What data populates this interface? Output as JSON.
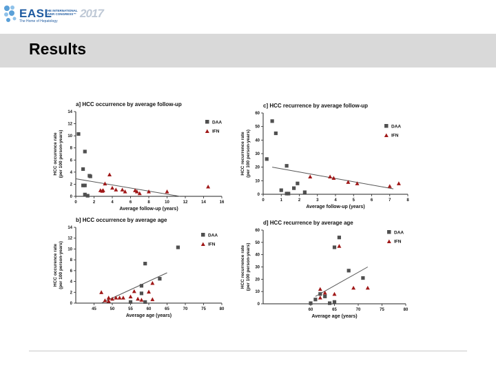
{
  "header": {
    "logo_text": "EASL",
    "logo_sub": "The Home of Hepatology",
    "logo_congress": "THE INTERNATIONAL LIVER CONGRESS™",
    "logo_year": "2017"
  },
  "slide": {
    "title": "Results"
  },
  "colors": {
    "daa": "#505050",
    "ifn": "#a01818",
    "trend": "#555555",
    "banner": "#d9d9d9"
  },
  "chart_data": [
    {
      "type": "scatter",
      "title": "a] HCC occurrence by average follow-up",
      "xlabel": "Average follow-up (years)",
      "ylabel": [
        "HCC occurence rate",
        "(per 100 person-years)"
      ],
      "xlim": [
        0,
        16
      ],
      "ylim": [
        0,
        14
      ],
      "xticks": [
        "0",
        "2",
        "4",
        "6",
        "8",
        "10",
        "12",
        "14",
        "16"
      ],
      "yticks": [
        "0",
        "2",
        "4",
        "6",
        "8",
        "10",
        "12",
        "14"
      ],
      "legend": [
        "DAA",
        "IFN"
      ],
      "trend": {
        "x": [
          0,
          11.4
        ],
        "y": [
          2.9,
          0
        ]
      },
      "series": [
        {
          "name": "DAA",
          "marker": "square",
          "points": [
            [
              0.3,
              10.3
            ],
            [
              1.0,
              7.4
            ],
            [
              0.8,
              4.5
            ],
            [
              0.8,
              1.8
            ],
            [
              1.0,
              1.8
            ],
            [
              1.5,
              3.4
            ],
            [
              1.6,
              3.3
            ],
            [
              1.0,
              0.3
            ],
            [
              1.3,
              0.1
            ]
          ]
        },
        {
          "name": "IFN",
          "marker": "triangle",
          "points": [
            [
              3.7,
              3.6
            ],
            [
              3.2,
              2.1
            ],
            [
              4.0,
              1.4
            ],
            [
              4.4,
              1.1
            ],
            [
              2.7,
              1.0
            ],
            [
              3.0,
              1.0
            ],
            [
              5.1,
              1.1
            ],
            [
              5.4,
              0.8
            ],
            [
              6.7,
              0.8
            ],
            [
              7.0,
              0.5
            ],
            [
              8.0,
              0.8
            ],
            [
              10.0,
              0.8
            ],
            [
              14.5,
              1.6
            ],
            [
              2.9,
              0.9
            ],
            [
              6.5,
              1.0
            ]
          ]
        }
      ]
    },
    {
      "type": "scatter",
      "title": "c] HCC recurrence by average follow-up",
      "xlabel": "Average follow-up (years)",
      "ylabel": [
        "HCC recurrence rate",
        "(per 100 person-years)"
      ],
      "xlim": [
        0,
        8
      ],
      "ylim": [
        0,
        60
      ],
      "xticks": [
        "0",
        "1",
        "2",
        "3",
        "4",
        "5",
        "6",
        "7",
        "8"
      ],
      "yticks": [
        "0",
        "10",
        "20",
        "30",
        "40",
        "50",
        "60"
      ],
      "legend": [
        "DAA",
        "IFN"
      ],
      "trend": {
        "x": [
          0.5,
          7.2
        ],
        "y": [
          20,
          4
        ]
      },
      "series": [
        {
          "name": "DAA",
          "marker": "square",
          "points": [
            [
              0.2,
              26
            ],
            [
              0.5,
              54
            ],
            [
              0.7,
              45
            ],
            [
              1.3,
              21
            ],
            [
              1.0,
              3
            ],
            [
              1.3,
              0.5
            ],
            [
              1.7,
              4.5
            ],
            [
              1.9,
              8
            ],
            [
              2.3,
              1.5
            ],
            [
              1.4,
              0.5
            ]
          ]
        },
        {
          "name": "IFN",
          "marker": "triangle",
          "points": [
            [
              2.6,
              13
            ],
            [
              3.7,
              13
            ],
            [
              3.9,
              12
            ],
            [
              4.7,
              9
            ],
            [
              5.2,
              8
            ],
            [
              7.0,
              6
            ],
            [
              7.5,
              8
            ]
          ]
        }
      ]
    },
    {
      "type": "scatter",
      "title": "b] HCC occurrence by average age",
      "xlabel": "Average age (years)",
      "ylabel": [
        "HCC occurence rate",
        "(per 100 person-years)"
      ],
      "xlim": [
        40,
        80
      ],
      "ylim": [
        0,
        14
      ],
      "xticks": [
        "45",
        "50",
        "55",
        "60",
        "65",
        "70",
        "75",
        "80"
      ],
      "yticks": [
        "0",
        "2",
        "4",
        "6",
        "8",
        "10",
        "12",
        "14"
      ],
      "legend": [
        "DAA",
        "IFN"
      ],
      "trend": {
        "x": [
          47,
          65
        ],
        "y": [
          0,
          5.6
        ]
      },
      "series": [
        {
          "name": "DAA",
          "marker": "square",
          "points": [
            [
              68,
              10.3
            ],
            [
              59,
              7.3
            ],
            [
              58,
              3.2
            ],
            [
              58,
              1.8
            ],
            [
              63,
              4.5
            ],
            [
              55,
              0.2
            ],
            [
              59,
              0.2
            ]
          ]
        },
        {
          "name": "IFN",
          "marker": "triangle",
          "points": [
            [
              47,
              2.0
            ],
            [
              48,
              0.5
            ],
            [
              49,
              1.0
            ],
            [
              50,
              0.8
            ],
            [
              51,
              1.0
            ],
            [
              52,
              1.0
            ],
            [
              53,
              1.0
            ],
            [
              55,
              1.2
            ],
            [
              56,
              2.2
            ],
            [
              57,
              0.8
            ],
            [
              58,
              0.6
            ],
            [
              60,
              2.1
            ],
            [
              61,
              3.7
            ],
            [
              61,
              0.7
            ],
            [
              49,
              0.4
            ]
          ]
        }
      ]
    },
    {
      "type": "scatter",
      "title": "d] HCC recurrence by average age",
      "xlabel": "Average age (years)",
      "ylabel": [
        "HCC recurrence rate",
        "(per 100 person-years)"
      ],
      "xlim": [
        50,
        80
      ],
      "ylim": [
        0,
        60
      ],
      "xticks": [
        "60",
        "65",
        "70",
        "75",
        "80"
      ],
      "yticks": [
        "0",
        "10",
        "20",
        "30",
        "40",
        "50",
        "60"
      ],
      "legend": [
        "DAA",
        "IFN"
      ],
      "trend": {
        "x": [
          61,
          72
        ],
        "y": [
          6,
          30
        ]
      },
      "series": [
        {
          "name": "DAA",
          "marker": "square",
          "points": [
            [
              60,
              0.5
            ],
            [
              61,
              3.5
            ],
            [
              62,
              8
            ],
            [
              63,
              6
            ],
            [
              64,
              0.5
            ],
            [
              65,
              1.5
            ],
            [
              65,
              46
            ],
            [
              66,
              54
            ],
            [
              68,
              27
            ],
            [
              71,
              21
            ]
          ]
        },
        {
          "name": "IFN",
          "marker": "triangle",
          "points": [
            [
              62,
              12
            ],
            [
              63,
              9
            ],
            [
              65,
              8
            ],
            [
              66,
              47
            ],
            [
              69,
              13
            ],
            [
              72,
              13
            ],
            [
              62,
              5
            ]
          ]
        }
      ]
    }
  ]
}
